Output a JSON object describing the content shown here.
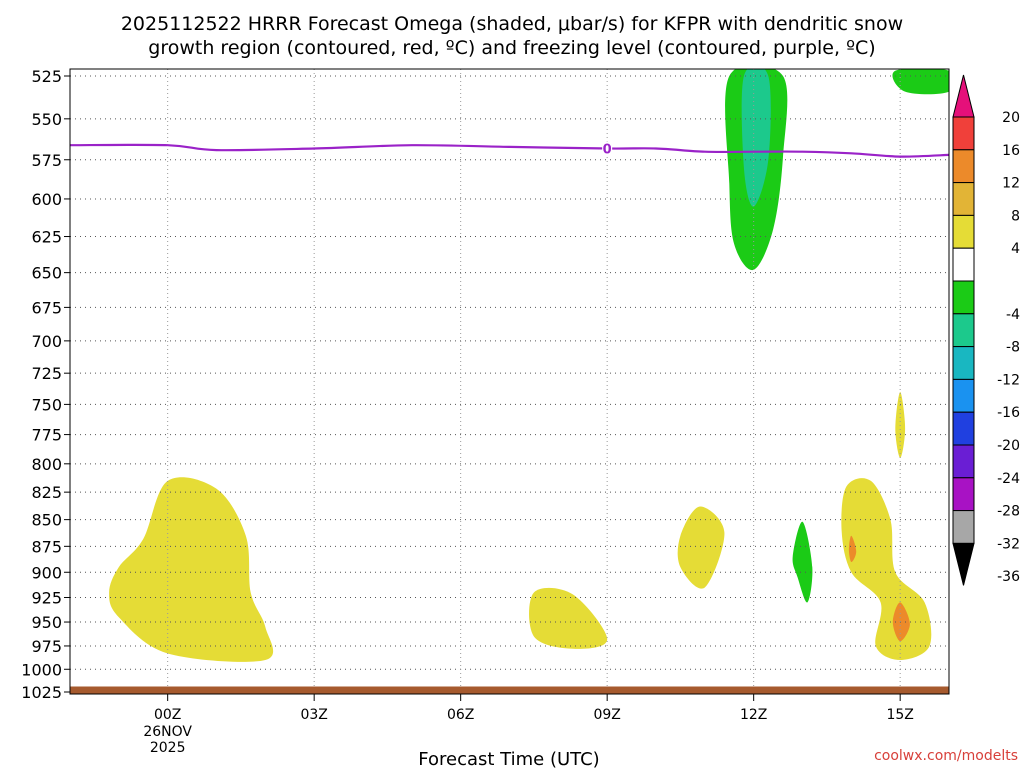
{
  "title": {
    "line1": "2025112522 HRRR Forecast Omega (shaded, μbar/s) for KFPR with dendritic snow",
    "line2": "growth region (contoured, red, ºC) and freezing level (contoured, purple, ºC)"
  },
  "xlabel": "Forecast Time (UTC)",
  "credit": "coolwx.com/modelts",
  "chart_data": {
    "type": "time-height contour",
    "y_axis": {
      "label": "",
      "units": "hPa",
      "ticks": [
        525,
        550,
        575,
        600,
        625,
        650,
        675,
        700,
        725,
        750,
        775,
        800,
        825,
        850,
        875,
        900,
        925,
        950,
        975,
        1000,
        1025
      ],
      "range": [
        1025,
        525
      ],
      "scale": "log"
    },
    "x_axis": {
      "label": "Forecast Time (UTC)",
      "ticks": [
        {
          "hour": 0,
          "label": "00Z",
          "sub": [
            "26NOV",
            "2025"
          ]
        },
        {
          "hour": 3,
          "label": "03Z"
        },
        {
          "hour": 6,
          "label": "06Z"
        },
        {
          "hour": 9,
          "label": "09Z"
        },
        {
          "hour": 12,
          "label": "12Z"
        },
        {
          "hour": 15,
          "label": "15Z"
        }
      ],
      "range": [
        -2,
        16
      ]
    },
    "colorbar": {
      "levels": [
        20,
        16,
        12,
        8,
        4,
        -4,
        -8,
        -12,
        -16,
        -20,
        -24,
        -28,
        -32,
        -36
      ],
      "bands": [
        {
          "range": [
            16,
            20
          ],
          "color": "#f0403a"
        },
        {
          "range": [
            12,
            16
          ],
          "color": "#ec8a2a"
        },
        {
          "range": [
            8,
            12
          ],
          "color": "#e2b436"
        },
        {
          "range": [
            4,
            8
          ],
          "color": "#e5dc36"
        },
        {
          "range": [
            -4,
            4
          ],
          "color": "#ffffff"
        },
        {
          "range": [
            -8,
            -4
          ],
          "color": "#1bcb16"
        },
        {
          "range": [
            -12,
            -8
          ],
          "color": "#1cc98c"
        },
        {
          "range": [
            -16,
            -12
          ],
          "color": "#19b7c1"
        },
        {
          "range": [
            -20,
            -16
          ],
          "color": "#1a92f0"
        },
        {
          "range": [
            -24,
            -20
          ],
          "color": "#2040e0"
        },
        {
          "range": [
            -28,
            -24
          ],
          "color": "#6a1ed4"
        },
        {
          "range": [
            -32,
            -28
          ],
          "color": "#a812c4"
        },
        {
          "range": [
            -36,
            -32
          ],
          "color": "#a7a7a7"
        }
      ],
      "top_arrow_color": "#e5107a",
      "bottom_arrow_color": "#000000"
    },
    "freezing_level": {
      "label": "0",
      "color": "#9a22c8",
      "points": [
        {
          "hour": -2,
          "hPa": 566
        },
        {
          "hour": 0,
          "hPa": 566
        },
        {
          "hour": 1,
          "hPa": 569
        },
        {
          "hour": 3,
          "hPa": 568
        },
        {
          "hour": 5,
          "hPa": 566
        },
        {
          "hour": 7,
          "hPa": 567
        },
        {
          "hour": 9,
          "hPa": 568
        },
        {
          "hour": 10,
          "hPa": 568
        },
        {
          "hour": 11,
          "hPa": 570
        },
        {
          "hour": 12,
          "hPa": 570
        },
        {
          "hour": 13,
          "hPa": 570
        },
        {
          "hour": 14,
          "hPa": 571
        },
        {
          "hour": 15,
          "hPa": 573
        },
        {
          "hour": 16,
          "hPa": 572
        }
      ]
    },
    "surface_color": "#a65a2e",
    "omega_regions": [
      {
        "name": "lower-yellow-blob-00z",
        "color": "#e5dc36",
        "points": [
          [
            0,
            815
          ],
          [
            1,
            822
          ],
          [
            1.6,
            865
          ],
          [
            1.7,
            920
          ],
          [
            2,
            955
          ],
          [
            2,
            990
          ],
          [
            0,
            983
          ],
          [
            -1,
            945
          ],
          [
            -1.2,
            920
          ],
          [
            -1,
            895
          ],
          [
            -0.5,
            868
          ]
        ]
      },
      {
        "name": "lower-yellow-blob-08z",
        "color": "#e5dc36",
        "points": [
          [
            7.5,
            920
          ],
          [
            8.3,
            922
          ],
          [
            9,
            968
          ],
          [
            8.3,
            978
          ],
          [
            7.5,
            965
          ]
        ]
      },
      {
        "name": "lower-yellow-blob-11z",
        "color": "#e5dc36",
        "points": [
          [
            10.9,
            838
          ],
          [
            11.4,
            862
          ],
          [
            11,
            915
          ],
          [
            10.5,
            895
          ],
          [
            10.5,
            865
          ]
        ]
      },
      {
        "name": "upper-green-column-12z",
        "color": "#1bcb16",
        "points": [
          [
            11.5,
            525
          ],
          [
            12.6,
            525
          ],
          [
            12.6,
            573
          ],
          [
            12.4,
            620
          ],
          [
            12,
            648
          ],
          [
            11.6,
            630
          ],
          [
            11.5,
            590
          ]
        ]
      },
      {
        "name": "upper-teal-core-12z",
        "color": "#1cc98c",
        "points": [
          [
            11.8,
            525
          ],
          [
            12.3,
            525
          ],
          [
            12.3,
            575
          ],
          [
            12,
            605
          ],
          [
            11.8,
            580
          ]
        ]
      },
      {
        "name": "lower-green-streak-13z",
        "color": "#1bcb16",
        "points": [
          [
            13,
            852
          ],
          [
            13.2,
            895
          ],
          [
            13.1,
            930
          ],
          [
            12.9,
            905
          ],
          [
            12.8,
            885
          ]
        ]
      },
      {
        "name": "upper-green-corner-15z",
        "color": "#1bcb16",
        "points": [
          [
            14.9,
            522
          ],
          [
            16,
            522
          ],
          [
            16,
            534
          ],
          [
            15.1,
            534
          ]
        ]
      },
      {
        "name": "mid-yellow-sliver-15z",
        "color": "#e5dc36",
        "points": [
          [
            15,
            740
          ],
          [
            15.1,
            770
          ],
          [
            15,
            795
          ],
          [
            14.9,
            770
          ]
        ]
      },
      {
        "name": "lower-yellow-blob-14z-15z",
        "color": "#e5dc36",
        "points": [
          [
            13.9,
            820
          ],
          [
            14.4,
            815
          ],
          [
            14.8,
            850
          ],
          [
            14.9,
            900
          ],
          [
            15.5,
            930
          ],
          [
            15.6,
            975
          ],
          [
            15,
            990
          ],
          [
            14.5,
            975
          ],
          [
            14.6,
            930
          ],
          [
            14,
            900
          ],
          [
            13.8,
            860
          ]
        ]
      },
      {
        "name": "lower-orange-spot-14z",
        "color": "#ec8a2a",
        "points": [
          [
            14,
            865
          ],
          [
            14.1,
            880
          ],
          [
            14,
            890
          ],
          [
            13.95,
            878
          ]
        ]
      },
      {
        "name": "lower-orange-spot-15z",
        "color": "#ec8a2a",
        "points": [
          [
            15,
            930
          ],
          [
            15.2,
            952
          ],
          [
            15,
            970
          ],
          [
            14.85,
            950
          ]
        ]
      }
    ]
  }
}
